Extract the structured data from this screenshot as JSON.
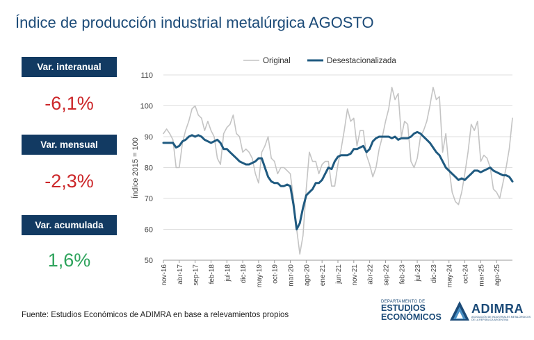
{
  "title": "Índice de producción industrial metalúrgica AGOSTO",
  "kpis": [
    {
      "label": "Var. interanual",
      "value": "-6,1%",
      "tone": "negative"
    },
    {
      "label": "Var. mensual",
      "value": "-2,3%",
      "tone": "negative"
    },
    {
      "label": "Var. acumulada",
      "value": "1,6%",
      "tone": "positive"
    }
  ],
  "source": "Fuente: Estudios Económicos de ADIMRA en base a relevamientos propios",
  "logos": {
    "ee_small": "DEPARTAMENTO DE",
    "ee_line1": "ESTUDIOS",
    "ee_line2": "ECONÓMICOS",
    "adimra": "ADIMRA",
    "adimra_sub": "ASOCIACIÓN DE INDUSTRIALES METALÚRGICOS DE LA REPÚBLICA ARGENTINA"
  },
  "colors": {
    "original": "#c4c4c4",
    "desest": "#1f5a80",
    "title": "#1c4b78",
    "label_bg": "#123a62",
    "negative": "#cc2629",
    "positive": "#2ea35c"
  },
  "chart_data": {
    "type": "line",
    "ylabel": "Índice 2015 = 100",
    "ylim": [
      50,
      110
    ],
    "yticks": [
      50,
      60,
      70,
      80,
      90,
      100,
      110
    ],
    "grid": true,
    "legend_position": "top",
    "x_start": "nov-16",
    "tick_labels": [
      "nov-16",
      "abr-17",
      "sep-17",
      "feb-18",
      "jul-18",
      "dic-18",
      "may-19",
      "oct-19",
      "mar-20",
      "ago-20",
      "ene-21",
      "jun-21",
      "nov-21",
      "abr-22",
      "sep-22",
      "feb-23",
      "jul-23",
      "dic-23",
      "may-24",
      "oct-24",
      "mar-25",
      "ago-25"
    ],
    "series": [
      {
        "name": "Original",
        "values": [
          91,
          92.5,
          91,
          89,
          80,
          80,
          88,
          92,
          95,
          99,
          100,
          97,
          96,
          92,
          95,
          92,
          90,
          83,
          81,
          91,
          93,
          94,
          97,
          91,
          90,
          85,
          86,
          85,
          83,
          78,
          75,
          85,
          87,
          90,
          83,
          82,
          78,
          80,
          80,
          79,
          78,
          70,
          60,
          52,
          58,
          73,
          85,
          82,
          82,
          78,
          81,
          82,
          82,
          74,
          74,
          81,
          86,
          92,
          99,
          95,
          96,
          87,
          92,
          92,
          84,
          81,
          77,
          80,
          86,
          90,
          95,
          99,
          106,
          102,
          104,
          90,
          95,
          94,
          82,
          80,
          83,
          90,
          92,
          95,
          100,
          106,
          102,
          103,
          85,
          91,
          80,
          72,
          69,
          68,
          72,
          78,
          85,
          94,
          92,
          95,
          82,
          84,
          83,
          80,
          73,
          72,
          70,
          75,
          80,
          86,
          96
        ]
      },
      {
        "name": "Desestacionalizada",
        "values": [
          88,
          88,
          88,
          88,
          86.5,
          87,
          88.5,
          89,
          90,
          90.5,
          90,
          90.5,
          90,
          89,
          88.5,
          88,
          88.5,
          89,
          88,
          86,
          86,
          85,
          84,
          83,
          82,
          81.5,
          81,
          81,
          81.5,
          82,
          83,
          83,
          80,
          77,
          75.5,
          75,
          75,
          74,
          74,
          74.5,
          74,
          68,
          60,
          62,
          67,
          71,
          72,
          73,
          75,
          75,
          76,
          78,
          80,
          79.5,
          82,
          83.5,
          84,
          84,
          84,
          84.5,
          86,
          86,
          86.5,
          87,
          85,
          86,
          88.5,
          89.5,
          90,
          90,
          90,
          90,
          89.5,
          90,
          89,
          89.5,
          89.5,
          89.5,
          90,
          91,
          91.5,
          91,
          90,
          89,
          88,
          86.5,
          85,
          84,
          82,
          80,
          79,
          78,
          77,
          76,
          76.5,
          76,
          77,
          78,
          79,
          79,
          78.5,
          79,
          79.5,
          80,
          79,
          78.5,
          78,
          77.5,
          77.5,
          77,
          75.5
        ]
      }
    ]
  }
}
